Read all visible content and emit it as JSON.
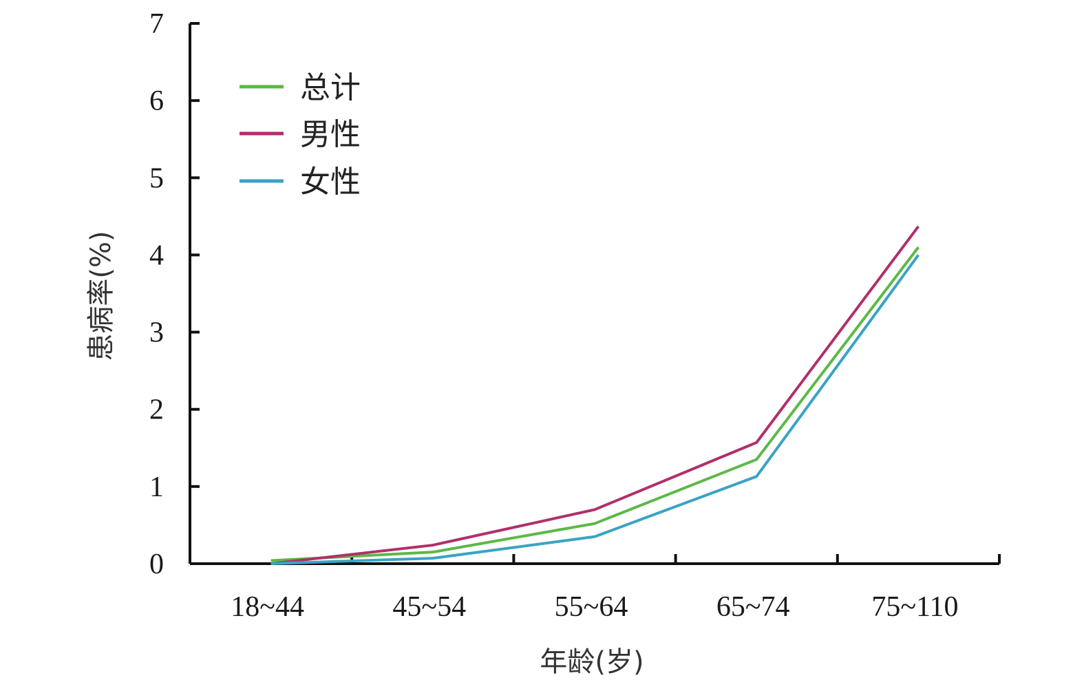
{
  "chart_data": {
    "type": "line",
    "categories": [
      "18~44",
      "45~54",
      "55~64",
      "65~74",
      "75~110"
    ],
    "series": [
      {
        "name": "总计",
        "color": "#5cb947",
        "values": [
          0.04,
          0.15,
          0.52,
          1.35,
          4.1
        ]
      },
      {
        "name": "男性",
        "color": "#b0306a",
        "values": [
          0.0,
          0.24,
          0.7,
          1.57,
          4.37
        ]
      },
      {
        "name": "女性",
        "color": "#3aa3c4",
        "values": [
          0.0,
          0.07,
          0.35,
          1.13,
          4.0
        ]
      }
    ],
    "xlabel": "年龄(岁)",
    "ylabel": "患病率(%)",
    "ylim": [
      0,
      7
    ],
    "yticks": [
      0,
      1,
      2,
      3,
      4,
      5,
      6,
      7
    ],
    "legend": "top-left",
    "grid": false
  }
}
